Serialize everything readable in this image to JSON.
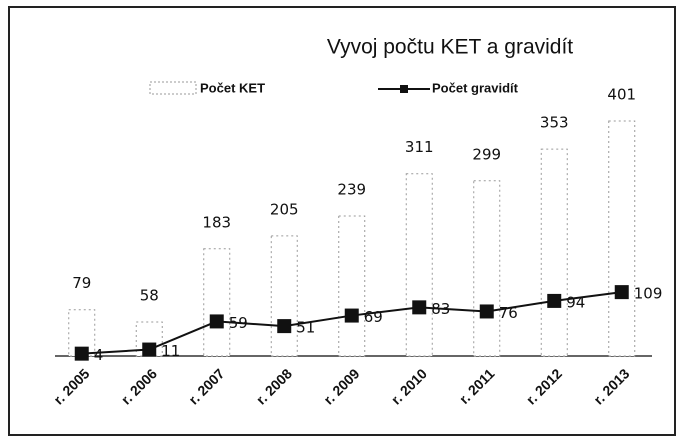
{
  "chart_data": {
    "type": "bar-line",
    "title": "Vyvoj počtu KET a gravidít",
    "categories": [
      "r. 2005",
      "r. 2006",
      "r. 2007",
      "r. 2008",
      "r. 2009",
      "r. 2010",
      "r. 2011",
      "r. 2012",
      "r. 2013"
    ],
    "series": [
      {
        "name": "Počet KET",
        "type": "bar",
        "color": "#9a9a9a",
        "values": [
          79,
          58,
          183,
          205,
          239,
          311,
          299,
          353,
          401
        ]
      },
      {
        "name": "Počet gravidít",
        "type": "line",
        "color": "#111111",
        "values": [
          4,
          11,
          59,
          51,
          69,
          83,
          76,
          94,
          109
        ]
      }
    ]
  }
}
